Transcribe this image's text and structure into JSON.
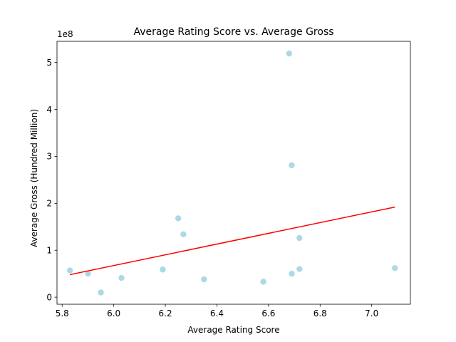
{
  "chart_data": {
    "type": "scatter",
    "title": "Average Rating Score vs. Average Gross",
    "xlabel": "Average Rating Score",
    "ylabel": "Average Gross (Hundred Million)",
    "y_offset_label": "1e8",
    "xlim": [
      5.78,
      7.15
    ],
    "ylim": [
      -0.15,
      5.45
    ],
    "xticks": [
      5.8,
      6.0,
      6.2,
      6.4,
      6.6,
      6.8,
      7.0
    ],
    "xtick_labels": [
      "5.8",
      "6.0",
      "6.2",
      "6.4",
      "6.6",
      "6.8",
      "7.0"
    ],
    "yticks": [
      0,
      1,
      2,
      3,
      4,
      5
    ],
    "ytick_labels": [
      "0",
      "1",
      "2",
      "3",
      "4",
      "5"
    ],
    "grid": false,
    "series": [
      {
        "type": "scatter",
        "color": "#add8e6",
        "unit_multiplier": 100000000,
        "points": [
          {
            "x": 5.83,
            "y": 0.57
          },
          {
            "x": 5.9,
            "y": 0.5
          },
          {
            "x": 5.95,
            "y": 0.1
          },
          {
            "x": 6.03,
            "y": 0.41
          },
          {
            "x": 6.19,
            "y": 0.59
          },
          {
            "x": 6.25,
            "y": 1.68
          },
          {
            "x": 6.27,
            "y": 1.34
          },
          {
            "x": 6.35,
            "y": 0.38
          },
          {
            "x": 6.58,
            "y": 0.33
          },
          {
            "x": 6.68,
            "y": 5.19
          },
          {
            "x": 6.69,
            "y": 2.81
          },
          {
            "x": 6.69,
            "y": 0.5
          },
          {
            "x": 6.72,
            "y": 1.26
          },
          {
            "x": 6.72,
            "y": 0.6
          },
          {
            "x": 7.09,
            "y": 0.62
          }
        ]
      },
      {
        "type": "line",
        "color": "#ff0000",
        "points": [
          {
            "x": 5.83,
            "y": 0.48
          },
          {
            "x": 7.09,
            "y": 1.92
          }
        ]
      }
    ]
  }
}
